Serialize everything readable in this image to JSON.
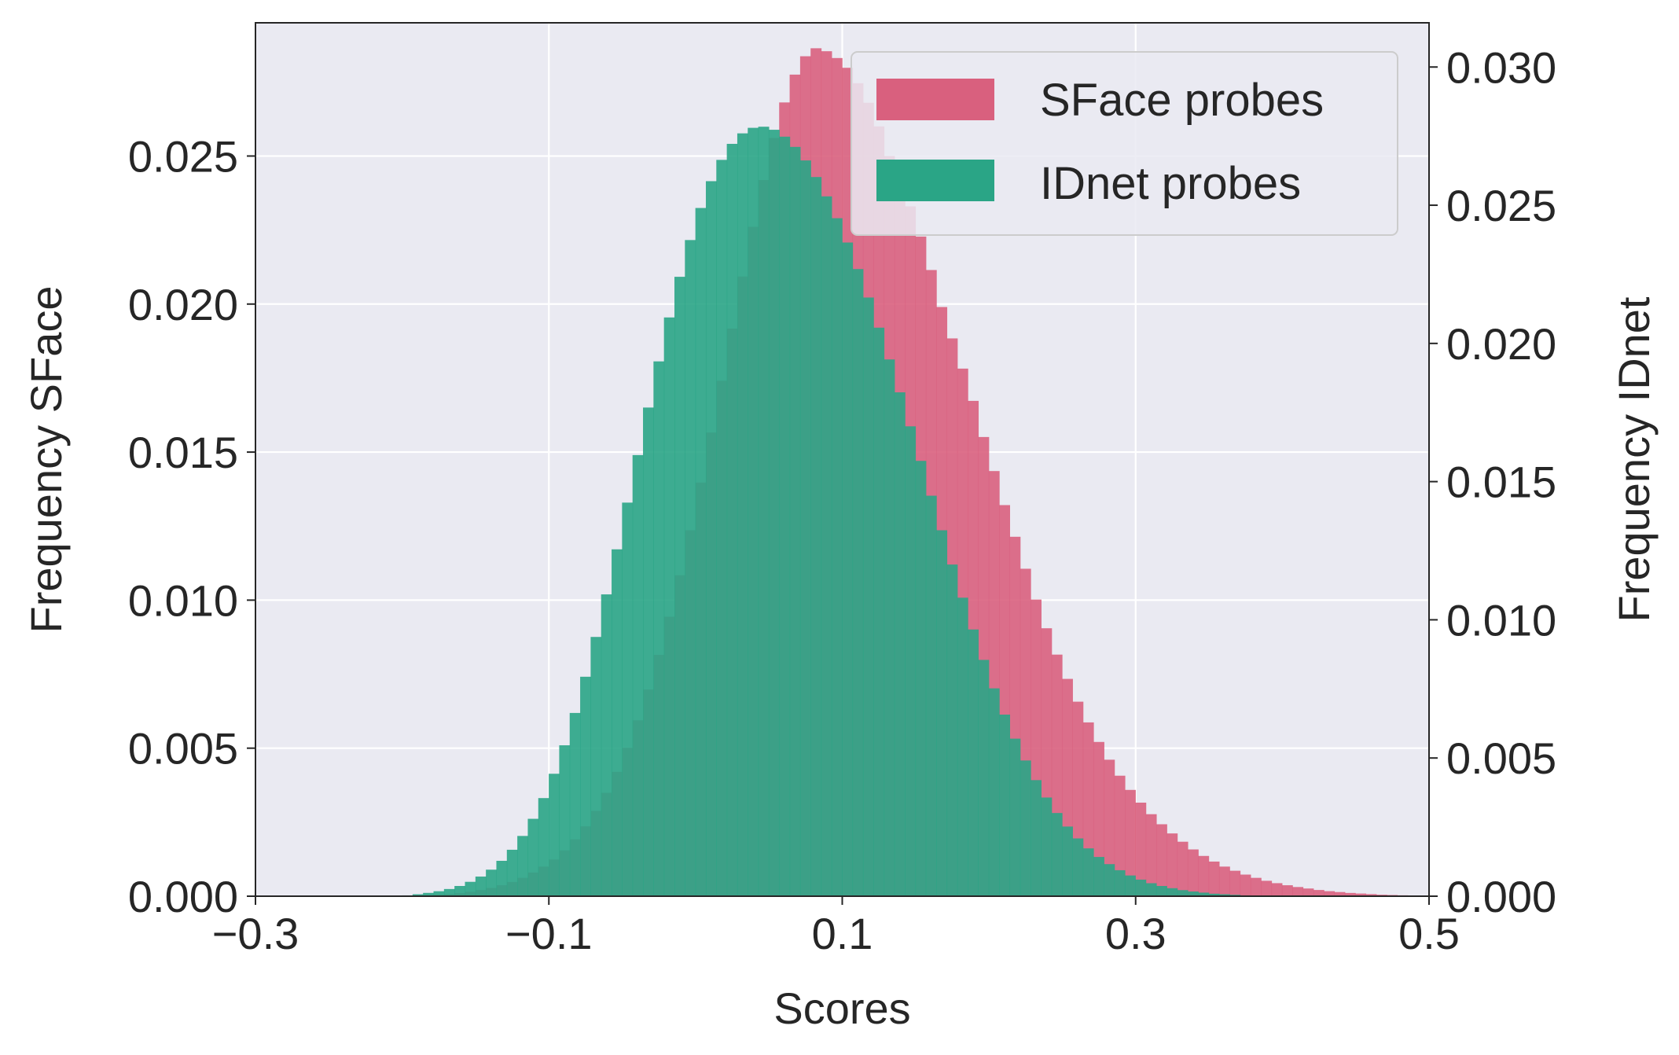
{
  "chart_data": {
    "type": "histogram",
    "xlabel": "Scores",
    "ylabel_left": "Frequency SFace",
    "ylabel_right": "Frequency IDnet",
    "xlim": [
      -0.3,
      0.5
    ],
    "ylim_left": [
      0,
      0.0295
    ],
    "ylim_right": [
      0,
      0.0316
    ],
    "x_ticks": [
      "−0.3",
      "−0.1",
      "0.1",
      "0.3",
      "0.5"
    ],
    "x_tick_values": [
      -0.3,
      -0.1,
      0.1,
      0.3,
      0.5
    ],
    "y_ticks_left": [
      "0.000",
      "0.005",
      "0.010",
      "0.015",
      "0.020",
      "0.025"
    ],
    "y_tick_values_left": [
      0,
      0.005,
      0.01,
      0.015,
      0.02,
      0.025
    ],
    "y_ticks_right": [
      "0.000",
      "0.005",
      "0.010",
      "0.015",
      "0.020",
      "0.025",
      "0.030"
    ],
    "y_tick_values_right": [
      0,
      0.005,
      0.01,
      0.015,
      0.02,
      0.025,
      0.03
    ],
    "grid": true,
    "legend_position": "top-right",
    "bin_start": -0.3,
    "bin_width": 0.00714,
    "series": [
      {
        "name": "SFace probes",
        "axis": "left",
        "color": "#d9607e",
        "values": [
          0,
          0,
          0,
          0,
          0,
          0,
          0,
          0,
          0,
          0,
          0,
          0,
          0,
          0,
          0,
          0,
          3e-05,
          5e-05,
          7e-05,
          0.0001,
          0.00015,
          0.00021,
          0.00028,
          0.00037,
          0.00048,
          0.00062,
          0.0008,
          0.001,
          0.00124,
          0.00155,
          0.00192,
          0.00236,
          0.00288,
          0.00349,
          0.0042,
          0.00501,
          0.00594,
          0.00698,
          0.00815,
          0.00944,
          0.01084,
          0.01236,
          0.01397,
          0.01566,
          0.01741,
          0.01917,
          0.02093,
          0.02261,
          0.02419,
          0.02561,
          0.02681,
          0.02775,
          0.02837,
          0.02864,
          0.02854,
          0.02831,
          0.02798,
          0.02746,
          0.0268,
          0.026,
          0.025,
          0.0242,
          0.0233,
          0.02228,
          0.02115,
          0.0199,
          0.01884,
          0.01782,
          0.01673,
          0.01551,
          0.01436,
          0.01321,
          0.01214,
          0.01106,
          0.01002,
          0.00905,
          0.00816,
          0.00734,
          0.00657,
          0.00587,
          0.00521,
          0.00461,
          0.00407,
          0.00359,
          0.00316,
          0.00277,
          0.00243,
          0.00212,
          0.00184,
          0.00158,
          0.00136,
          0.00117,
          0.001,
          0.00086,
          0.00073,
          0.00062,
          0.00052,
          0.00044,
          0.00037,
          0.00031,
          0.00026,
          0.00021,
          0.00017,
          0.00014,
          0.00011,
          9e-05,
          7e-05,
          5e-05,
          4e-05,
          3e-05,
          2e-05,
          1e-05
        ]
      },
      {
        "name": "IDnet probes",
        "axis": "right",
        "color": "#2aa586",
        "values": [
          0,
          0,
          0,
          0,
          0,
          0,
          0,
          0,
          0,
          0,
          0,
          0,
          0,
          0,
          3e-05,
          7e-05,
          0.00012,
          0.00018,
          0.00026,
          0.00037,
          0.00052,
          0.00071,
          0.00096,
          0.00128,
          0.00168,
          0.00218,
          0.0028,
          0.00355,
          0.00443,
          0.00546,
          0.00663,
          0.00794,
          0.00938,
          0.01092,
          0.01255,
          0.01424,
          0.01596,
          0.01768,
          0.01935,
          0.02094,
          0.02241,
          0.02374,
          0.0249,
          0.02587,
          0.02664,
          0.02722,
          0.0276,
          0.0278,
          0.02784,
          0.02773,
          0.02748,
          0.02711,
          0.02662,
          0.02602,
          0.02532,
          0.02453,
          0.02365,
          0.02269,
          0.02166,
          0.02057,
          0.01942,
          0.01823,
          0.017,
          0.01575,
          0.01449,
          0.01324,
          0.012,
          0.0108,
          0.00965,
          0.00855,
          0.00752,
          0.00657,
          0.0057,
          0.00491,
          0.0042,
          0.00357,
          0.00301,
          0.00252,
          0.00209,
          0.00173,
          0.00142,
          0.00116,
          0.00094,
          0.00075,
          0.0006,
          0.00047,
          0.00037,
          0.00029,
          0.00022,
          0.00017,
          0.00013,
          9e-05,
          7e-05,
          5e-05,
          3e-05,
          2e-05,
          1e-05,
          0,
          0,
          0,
          0,
          0,
          0,
          0,
          0,
          0,
          0,
          0,
          0,
          0,
          0,
          0
        ]
      }
    ]
  }
}
